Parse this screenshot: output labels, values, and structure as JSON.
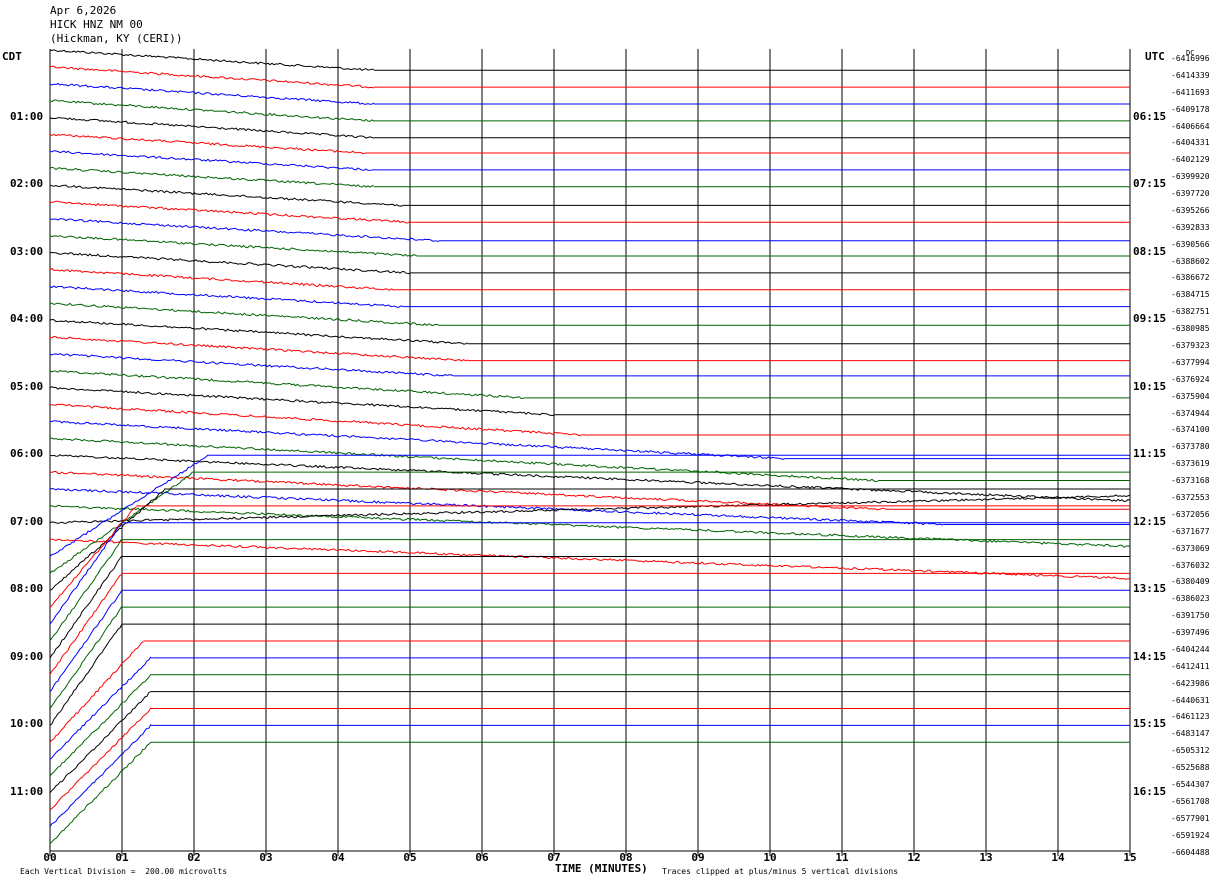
{
  "header": {
    "date": "Apr 6,2026",
    "station": "HICK HNZ NM 00",
    "location": "(Hickman, KY (CERI))"
  },
  "left_tz": "CDT",
  "right_tz": "UTC",
  "dc_label": "DC",
  "left_times": [
    "01:00",
    "02:00",
    "03:00",
    "04:00",
    "05:00",
    "06:00",
    "07:00",
    "08:00",
    "09:00",
    "10:00",
    "11:00"
  ],
  "right_times": [
    "06:15",
    "07:15",
    "08:15",
    "09:15",
    "10:15",
    "11:15",
    "12:15",
    "13:15",
    "14:15",
    "15:15",
    "16:15"
  ],
  "dc_values": [
    "-6416996",
    "-6414339",
    "-6411693",
    "-6409178",
    "-6406664",
    "-6404331",
    "-6402129",
    "-6399920",
    "-6397720",
    "-6395266",
    "-6392833",
    "-6390566",
    "-6388602",
    "-6386672",
    "-6384715",
    "-6382751",
    "-6380985",
    "-6379323",
    "-6377994",
    "-6376924",
    "-6375904",
    "-6374944",
    "-6374100",
    "-6373780",
    "-6373619",
    "-6373168",
    "-6372553",
    "-6372056",
    "-6371677",
    "-6373069",
    "-6376032",
    "-6380409",
    "-6386023",
    "-6391750",
    "-6397496",
    "-6404244",
    "-6412411",
    "-6423986",
    "-6440631",
    "-6461123",
    "-6483147",
    "-6505312",
    "-6525688",
    "-6544307",
    "-6561708",
    "-6577901",
    "-6591924",
    "-6604488"
  ],
  "x_ticks": [
    "00",
    "01",
    "02",
    "03",
    "04",
    "05",
    "06",
    "07",
    "08",
    "09",
    "10",
    "11",
    "12",
    "13",
    "14",
    "15"
  ],
  "x_axis_label": "TIME (MINUTES)",
  "footer": {
    "scale": "Each Vertical Division =  200.00 microvolts",
    "clip": "Traces clipped at plus/minus 5 vertical divisions"
  },
  "colors": {
    "trace_cycle": [
      "#000000",
      "#ff0000",
      "#0000ff",
      "#006400"
    ],
    "grid": "#000000",
    "background": "#ffffff"
  },
  "chart_data": {
    "type": "line",
    "subtype": "helicorder",
    "x_unit": "minutes",
    "xlim": [
      0,
      15
    ],
    "rows_per_hour": 4,
    "row_minutes": 15,
    "row_count": 48,
    "grid": true,
    "row_trace_end_minutes": [
      4.5,
      4.5,
      4.5,
      4.5,
      4.5,
      4.4,
      4.5,
      4.5,
      4.9,
      5.0,
      5.4,
      5.1,
      5.0,
      4.8,
      4.9,
      5.4,
      5.8,
      5.8,
      5.6,
      6.6,
      7.0,
      7.4,
      10.2,
      11.5,
      15.0,
      11.6,
      12.4,
      15.0,
      15.0,
      15.0,
      2.2,
      2.0,
      1.6,
      1.2,
      1.0,
      1.0,
      1.0,
      1.0,
      1.0,
      1.0,
      1.0,
      1.3,
      1.4,
      1.4,
      1.4,
      1.4,
      1.4,
      1.4
    ],
    "row_slope_divisions": [
      -1.2,
      -1.2,
      -1.2,
      -1.2,
      -1.2,
      -1.1,
      -1.1,
      -1.1,
      -1.2,
      -1.2,
      -1.3,
      -1.2,
      -1.2,
      -1.2,
      -1.2,
      -1.3,
      -1.4,
      -1.4,
      -1.3,
      -1.6,
      -1.6,
      -1.8,
      -2.2,
      -2.5,
      -2.7,
      -2.2,
      -2.1,
      -2.4,
      1.6,
      -2.3,
      6.0,
      6.0,
      6.0,
      6.0,
      6.0,
      6.0,
      6.0,
      6.0,
      6.0,
      6.0,
      6.0,
      6.0,
      6.0,
      6.0,
      6.0,
      6.0,
      6.0,
      6.0
    ]
  }
}
